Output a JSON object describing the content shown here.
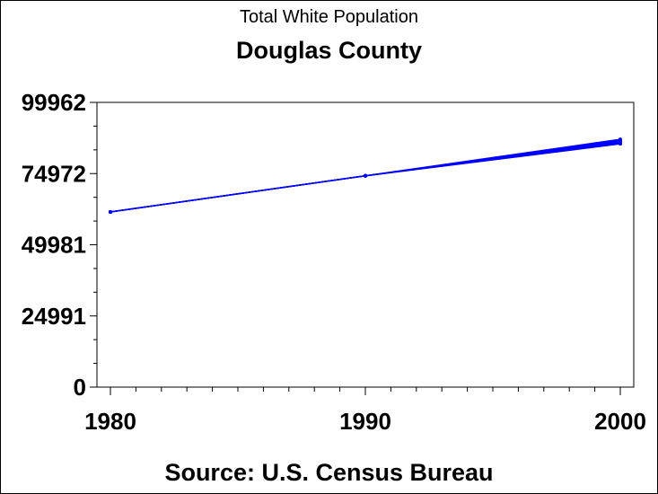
{
  "page": {
    "subtitle": "Total White Population",
    "title": "Douglas County",
    "source": "Source: U.S. Census Bureau"
  },
  "chart_data": {
    "type": "line",
    "title": "Douglas County",
    "subtitle": "Total White Population",
    "xlabel": "",
    "ylabel": "",
    "xlim": [
      1980,
      2000
    ],
    "ylim": [
      0,
      99962
    ],
    "x_ticks": [
      "1980",
      "1990",
      "2000"
    ],
    "y_ticks": [
      "0",
      "24991",
      "49981",
      "74972",
      "99962"
    ],
    "grid": false,
    "legend": "none",
    "line_color": "#0000ff",
    "series": [
      {
        "x": [
          1980,
          1990,
          2000
        ],
        "values": [
          61500,
          74200,
          87000
        ]
      },
      {
        "x": [
          1980,
          1990,
          2000
        ],
        "values": [
          61500,
          74200,
          86600
        ]
      },
      {
        "x": [
          1980,
          1990,
          2000
        ],
        "values": [
          61500,
          74200,
          86200
        ]
      },
      {
        "x": [
          1980,
          1990,
          2000
        ],
        "values": [
          61500,
          74200,
          85800
        ]
      },
      {
        "x": [
          1980,
          1990,
          2000
        ],
        "values": [
          61500,
          74200,
          85400
        ]
      }
    ],
    "caption": "Source: U.S. Census Bureau"
  }
}
